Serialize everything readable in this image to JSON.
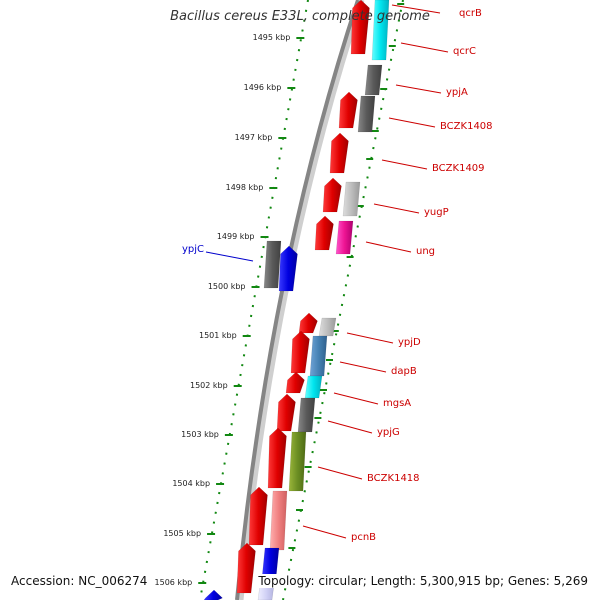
{
  "title": "Bacillus cereus E33L, complete genome",
  "footer": {
    "accession": "Accession: NC_006274",
    "topology": "Topology: circular; Length: 5,300,915 bp; Genes: 5,269"
  },
  "colors": {
    "backbone": "#808080",
    "tick_line": "#118811",
    "label_red": "#cc0000",
    "label_blue": "#0000cc",
    "cds_forward": "#ee0000",
    "cds_reverse": "#0000ee"
  },
  "kbp_ticks": [
    {
      "label": "1495 kbp"
    },
    {
      "label": "1496 kbp"
    },
    {
      "label": "1497 kbp"
    },
    {
      "label": "1498 kbp"
    },
    {
      "label": "1499 kbp"
    },
    {
      "label": "1500 kbp"
    },
    {
      "label": "1501 kbp"
    },
    {
      "label": "1502 kbp"
    },
    {
      "label": "1503 kbp"
    },
    {
      "label": "1504 kbp"
    },
    {
      "label": "1505 kbp"
    },
    {
      "label": "1506 kbp"
    }
  ],
  "gene_labels": [
    {
      "text": "qcrB"
    },
    {
      "text": "qcrC"
    },
    {
      "text": "ypjA"
    },
    {
      "text": "BCZK1408"
    },
    {
      "text": "BCZK1409"
    },
    {
      "text": "yugP"
    },
    {
      "text": "ung"
    },
    {
      "text": "ypjC"
    },
    {
      "text": "ypjD"
    },
    {
      "text": "dapB"
    },
    {
      "text": "mgsA"
    },
    {
      "text": "ypjG"
    },
    {
      "text": "BCZK1418"
    },
    {
      "text": "pcnB"
    }
  ]
}
